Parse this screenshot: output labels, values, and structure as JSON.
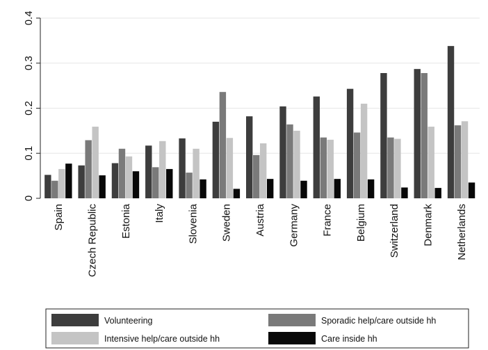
{
  "chart_data": {
    "type": "bar",
    "categories": [
      "Spain",
      "Czech Republic",
      "Estonia",
      "Italy",
      "Slovenia",
      "Sweden",
      "Austria",
      "Germany",
      "France",
      "Belgium",
      "Switzerland",
      "Denmark",
      "Netherlands"
    ],
    "series": [
      {
        "name": "Volunteering",
        "color": "#3d3d3d",
        "values": [
          0.052,
          0.073,
          0.078,
          0.117,
          0.133,
          0.17,
          0.182,
          0.204,
          0.226,
          0.243,
          0.278,
          0.287,
          0.338
        ]
      },
      {
        "name": "Sporadic help/care outside hh",
        "color": "#7a7a7a",
        "values": [
          0.039,
          0.129,
          0.11,
          0.069,
          0.057,
          0.236,
          0.096,
          0.164,
          0.135,
          0.146,
          0.135,
          0.278,
          0.162
        ]
      },
      {
        "name": "Intensive help/care outside hh",
        "color": "#c4c4c4",
        "values": [
          0.065,
          0.159,
          0.093,
          0.127,
          0.11,
          0.134,
          0.122,
          0.15,
          0.13,
          0.21,
          0.132,
          0.159,
          0.171
        ]
      },
      {
        "name": "Care inside hh",
        "color": "#080808",
        "values": [
          0.077,
          0.051,
          0.06,
          0.065,
          0.042,
          0.021,
          0.043,
          0.039,
          0.043,
          0.042,
          0.024,
          0.023,
          0.035
        ]
      }
    ],
    "ylim": [
      0,
      0.4
    ],
    "yticks": [
      0,
      0.1,
      0.2,
      0.3,
      0.4
    ],
    "ytick_labels": [
      "0",
      "0.1",
      "0.2",
      "0.3",
      "0.4"
    ],
    "grid": true,
    "legend_position": "bottom",
    "title": "",
    "xlabel": "",
    "ylabel": ""
  }
}
